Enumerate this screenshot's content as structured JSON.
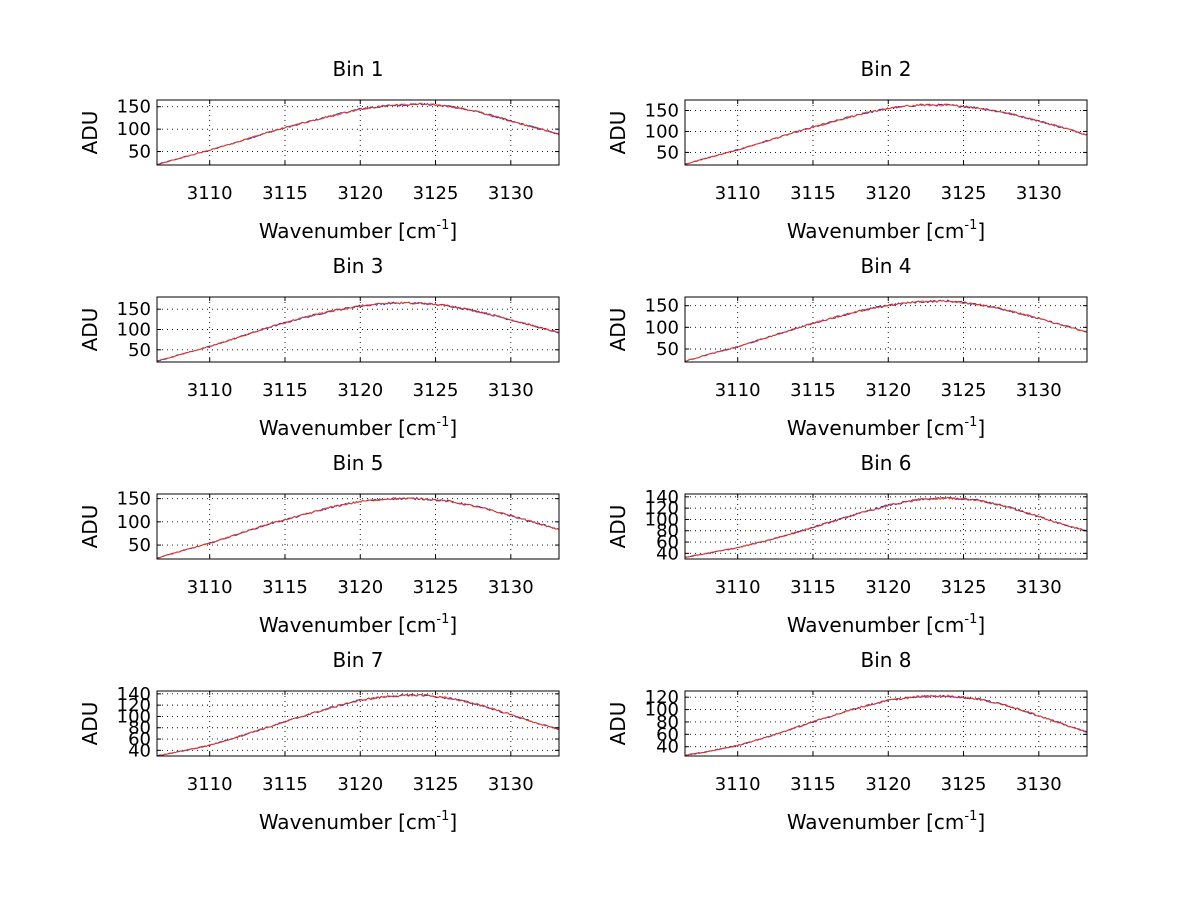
{
  "chart_data": [
    {
      "type": "line",
      "title": "Bin 1",
      "xlabel": "Wavenumber [cm",
      "xlabel_sup": "-1",
      "xlabel_close": "]",
      "ylabel": "ADU",
      "xlim": [
        3106.5,
        3133.2
      ],
      "ylim": [
        20,
        165
      ],
      "xticks": [
        3110,
        3115,
        3120,
        3125,
        3130
      ],
      "yticks": [
        50,
        100,
        150
      ],
      "x": [
        3106.5,
        3108,
        3110,
        3112,
        3114,
        3116,
        3118,
        3120,
        3122,
        3124,
        3126,
        3128,
        3130,
        3132,
        3133.2
      ],
      "series": [
        {
          "name": "blue",
          "color": "#2b2bd6",
          "values": [
            21,
            35,
            53,
            73,
            94,
            112,
            129,
            145,
            153,
            156,
            151,
            137,
            118,
            100,
            88
          ]
        },
        {
          "name": "red",
          "color": "#ff3a00",
          "values": [
            21,
            35,
            53,
            73,
            94,
            112,
            129,
            145,
            153,
            156,
            151,
            137,
            118,
            100,
            88
          ]
        }
      ]
    },
    {
      "type": "line",
      "title": "Bin 2",
      "xlabel": "Wavenumber [cm",
      "xlabel_sup": "-1",
      "xlabel_close": "]",
      "ylabel": "ADU",
      "xlim": [
        3106.5,
        3133.2
      ],
      "ylim": [
        20,
        175
      ],
      "xticks": [
        3110,
        3115,
        3120,
        3125,
        3130
      ],
      "yticks": [
        50,
        100,
        150
      ],
      "x": [
        3106.5,
        3108,
        3110,
        3112,
        3114,
        3116,
        3118,
        3120,
        3122,
        3124,
        3126,
        3128,
        3130,
        3132,
        3133.2
      ],
      "series": [
        {
          "name": "blue",
          "color": "#2b2bd6",
          "values": [
            22,
            37,
            56,
            78,
            100,
            120,
            140,
            155,
            163,
            163,
            156,
            143,
            125,
            105,
            92
          ]
        },
        {
          "name": "red",
          "color": "#ff3a00",
          "values": [
            22,
            37,
            56,
            78,
            100,
            120,
            140,
            155,
            163,
            163,
            156,
            143,
            125,
            105,
            92
          ]
        }
      ]
    },
    {
      "type": "line",
      "title": "Bin 3",
      "xlabel": "Wavenumber [cm",
      "xlabel_sup": "-1",
      "xlabel_close": "]",
      "ylabel": "ADU",
      "xlim": [
        3106.5,
        3133.2
      ],
      "ylim": [
        20,
        180
      ],
      "xticks": [
        3110,
        3115,
        3120,
        3125,
        3130
      ],
      "yticks": [
        50,
        100,
        150
      ],
      "x": [
        3106.5,
        3108,
        3110,
        3112,
        3114,
        3116,
        3118,
        3120,
        3122,
        3124,
        3126,
        3128,
        3130,
        3132,
        3133.2
      ],
      "series": [
        {
          "name": "blue",
          "color": "#2b2bd6",
          "values": [
            22,
            38,
            58,
            82,
            106,
            127,
            145,
            158,
            165,
            165,
            158,
            143,
            124,
            104,
            92
          ]
        },
        {
          "name": "red",
          "color": "#ff3a00",
          "values": [
            22,
            38,
            58,
            82,
            106,
            127,
            145,
            158,
            165,
            165,
            158,
            143,
            124,
            104,
            92
          ]
        }
      ]
    },
    {
      "type": "line",
      "title": "Bin 4",
      "xlabel": "Wavenumber [cm",
      "xlabel_sup": "-1",
      "xlabel_close": "]",
      "ylabel": "ADU",
      "xlim": [
        3106.5,
        3133.2
      ],
      "ylim": [
        20,
        170
      ],
      "xticks": [
        3110,
        3115,
        3120,
        3125,
        3130
      ],
      "yticks": [
        50,
        100,
        150
      ],
      "x": [
        3106.5,
        3108,
        3110,
        3112,
        3114,
        3116,
        3118,
        3120,
        3122,
        3124,
        3126,
        3128,
        3130,
        3132,
        3133.2
      ],
      "series": [
        {
          "name": "blue",
          "color": "#2b2bd6",
          "values": [
            22,
            37,
            55,
            77,
            99,
            119,
            137,
            151,
            159,
            161,
            153,
            139,
            120,
            101,
            89
          ]
        },
        {
          "name": "red",
          "color": "#ff3a00",
          "values": [
            22,
            37,
            55,
            77,
            99,
            119,
            137,
            151,
            159,
            161,
            153,
            139,
            120,
            101,
            89
          ]
        }
      ]
    },
    {
      "type": "line",
      "title": "Bin 5",
      "xlabel": "Wavenumber [cm",
      "xlabel_sup": "-1",
      "xlabel_close": "]",
      "ylabel": "ADU",
      "xlim": [
        3106.5,
        3133.2
      ],
      "ylim": [
        20,
        160
      ],
      "xticks": [
        3110,
        3115,
        3120,
        3125,
        3130
      ],
      "yticks": [
        50,
        100,
        150
      ],
      "x": [
        3106.5,
        3108,
        3110,
        3112,
        3114,
        3116,
        3118,
        3120,
        3122,
        3124,
        3126,
        3128,
        3130,
        3132,
        3133.2
      ],
      "series": [
        {
          "name": "blue",
          "color": "#2b2bd6",
          "values": [
            22,
            36,
            54,
            75,
            96,
            113,
            131,
            144,
            150,
            150,
            144,
            131,
            113,
            95,
            83
          ]
        },
        {
          "name": "red",
          "color": "#ff3a00",
          "values": [
            22,
            36,
            54,
            75,
            96,
            113,
            131,
            144,
            150,
            150,
            144,
            131,
            113,
            95,
            83
          ]
        }
      ]
    },
    {
      "type": "line",
      "title": "Bin 6",
      "xlabel": "Wavenumber [cm",
      "xlabel_sup": "-1",
      "xlabel_close": "]",
      "ylabel": "ADU",
      "xlim": [
        3106.5,
        3133.2
      ],
      "ylim": [
        30,
        145
      ],
      "xticks": [
        3110,
        3115,
        3120,
        3125,
        3130
      ],
      "yticks": [
        40,
        60,
        80,
        100,
        120,
        140
      ],
      "x": [
        3106.5,
        3108,
        3110,
        3112,
        3114,
        3116,
        3118,
        3120,
        3122,
        3124,
        3126,
        3128,
        3130,
        3132,
        3133.2
      ],
      "series": [
        {
          "name": "blue",
          "color": "#2b2bd6",
          "values": [
            33,
            40,
            50,
            63,
            78,
            94,
            110,
            125,
            135,
            138,
            134,
            122,
            105,
            88,
            80
          ]
        },
        {
          "name": "red",
          "color": "#ff3a00",
          "values": [
            33,
            40,
            50,
            63,
            78,
            94,
            110,
            125,
            135,
            138,
            134,
            122,
            105,
            88,
            80
          ]
        }
      ]
    },
    {
      "type": "line",
      "title": "Bin 7",
      "xlabel": "Wavenumber [cm",
      "xlabel_sup": "-1",
      "xlabel_close": "]",
      "ylabel": "ADU",
      "xlim": [
        3106.5,
        3133.2
      ],
      "ylim": [
        30,
        145
      ],
      "xticks": [
        3110,
        3115,
        3120,
        3125,
        3130
      ],
      "yticks": [
        40,
        60,
        80,
        100,
        120,
        140
      ],
      "x": [
        3106.5,
        3108,
        3110,
        3112,
        3114,
        3116,
        3118,
        3120,
        3122,
        3124,
        3126,
        3128,
        3130,
        3132,
        3133.2
      ],
      "series": [
        {
          "name": "blue",
          "color": "#2b2bd6",
          "values": [
            30,
            38,
            49,
            65,
            82,
            99,
            115,
            129,
            136,
            138,
            132,
            120,
            103,
            86,
            77
          ]
        },
        {
          "name": "red",
          "color": "#ff3a00",
          "values": [
            30,
            38,
            49,
            65,
            82,
            99,
            115,
            129,
            136,
            138,
            132,
            120,
            103,
            86,
            77
          ]
        }
      ]
    },
    {
      "type": "line",
      "title": "Bin 8",
      "xlabel": "Wavenumber [cm",
      "xlabel_sup": "-1",
      "xlabel_close": "]",
      "ylabel": "ADU",
      "xlim": [
        3106.5,
        3133.2
      ],
      "ylim": [
        25,
        130
      ],
      "xticks": [
        3110,
        3115,
        3120,
        3125,
        3130
      ],
      "yticks": [
        40,
        60,
        80,
        100,
        120
      ],
      "x": [
        3106.5,
        3108,
        3110,
        3112,
        3114,
        3116,
        3118,
        3120,
        3122,
        3124,
        3126,
        3128,
        3130,
        3132,
        3133.2
      ],
      "series": [
        {
          "name": "blue",
          "color": "#2b2bd6",
          "values": [
            26,
            32,
            42,
            56,
            72,
            88,
            103,
            115,
            121,
            122,
            117,
            106,
            90,
            73,
            64
          ]
        },
        {
          "name": "red",
          "color": "#ff3a00",
          "values": [
            26,
            32,
            42,
            56,
            72,
            88,
            103,
            115,
            121,
            122,
            117,
            106,
            90,
            73,
            64
          ]
        }
      ]
    }
  ]
}
